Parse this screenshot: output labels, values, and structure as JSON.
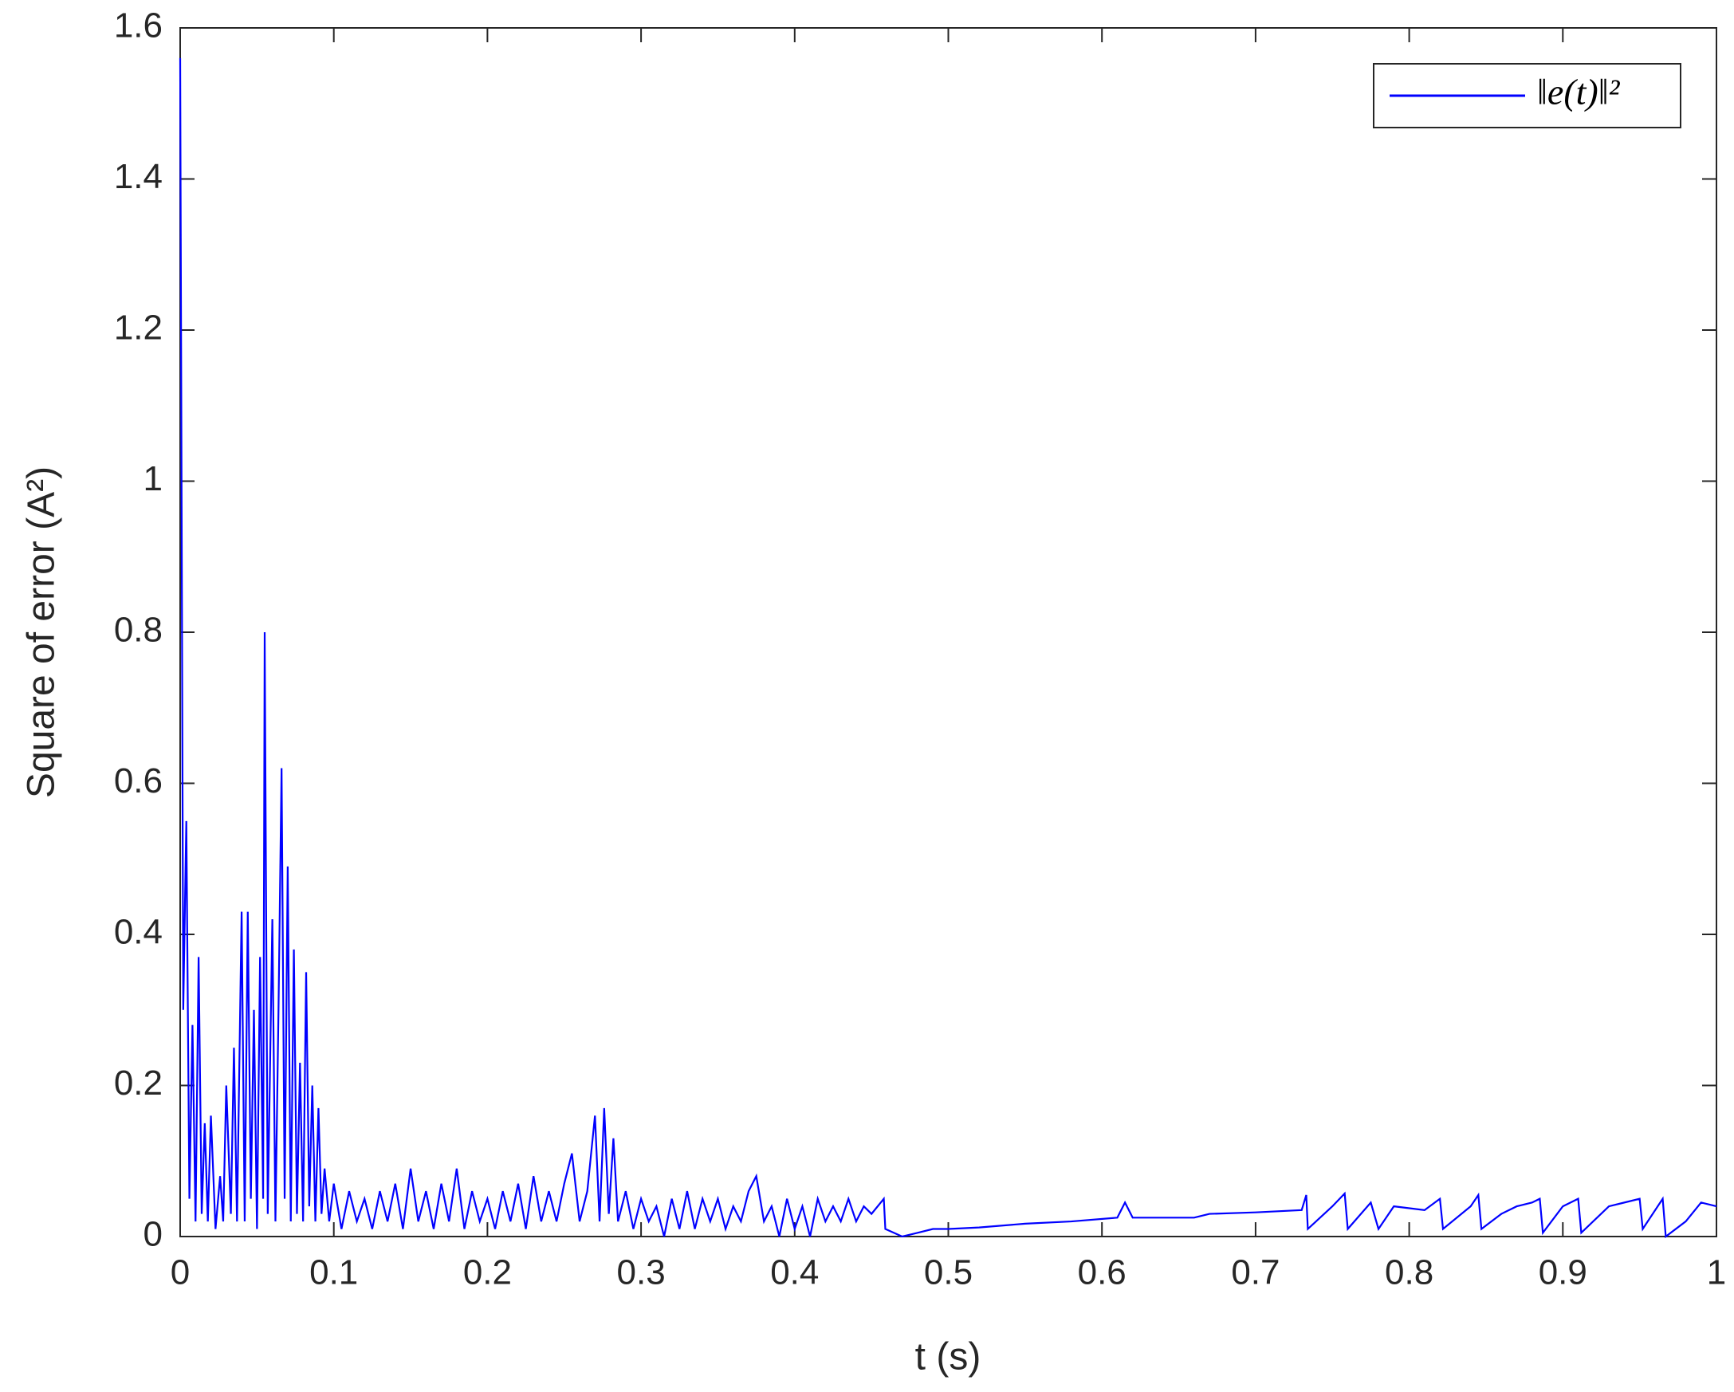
{
  "chart_data": {
    "type": "line",
    "xlabel": "t (s)",
    "ylabel": "Square of error (A²)",
    "xlim": [
      0,
      1
    ],
    "ylim": [
      0,
      1.6
    ],
    "xticks": [
      0,
      0.1,
      0.2,
      0.3,
      0.4,
      0.5,
      0.6,
      0.7,
      0.8,
      0.9,
      1
    ],
    "yticks": [
      0,
      0.2,
      0.4,
      0.6,
      0.8,
      1,
      1.2,
      1.4,
      1.6
    ],
    "legend": "upper right",
    "series": [
      {
        "name": "‖e(t)‖²",
        "color": "#0000ff",
        "x": [
          0,
          0.002,
          0.004,
          0.006,
          0.008,
          0.01,
          0.012,
          0.014,
          0.016,
          0.018,
          0.02,
          0.023,
          0.026,
          0.028,
          0.03,
          0.033,
          0.035,
          0.037,
          0.04,
          0.042,
          0.044,
          0.046,
          0.048,
          0.05,
          0.052,
          0.054,
          0.055,
          0.057,
          0.06,
          0.062,
          0.064,
          0.066,
          0.068,
          0.07,
          0.072,
          0.074,
          0.076,
          0.078,
          0.08,
          0.082,
          0.084,
          0.086,
          0.088,
          0.09,
          0.092,
          0.094,
          0.097,
          0.1,
          0.105,
          0.11,
          0.115,
          0.12,
          0.125,
          0.13,
          0.135,
          0.14,
          0.145,
          0.15,
          0.155,
          0.16,
          0.165,
          0.17,
          0.175,
          0.18,
          0.185,
          0.19,
          0.195,
          0.2,
          0.205,
          0.21,
          0.215,
          0.22,
          0.225,
          0.23,
          0.235,
          0.24,
          0.245,
          0.25,
          0.255,
          0.26,
          0.265,
          0.27,
          0.273,
          0.276,
          0.279,
          0.282,
          0.285,
          0.29,
          0.295,
          0.3,
          0.305,
          0.31,
          0.315,
          0.32,
          0.325,
          0.33,
          0.335,
          0.34,
          0.345,
          0.35,
          0.355,
          0.36,
          0.365,
          0.37,
          0.375,
          0.38,
          0.385,
          0.39,
          0.395,
          0.4,
          0.405,
          0.41,
          0.415,
          0.42,
          0.425,
          0.43,
          0.435,
          0.44,
          0.445,
          0.45,
          0.458,
          0.459,
          0.47,
          0.48,
          0.49,
          0.5,
          0.52,
          0.55,
          0.58,
          0.61,
          0.615,
          0.62,
          0.66,
          0.67,
          0.7,
          0.73,
          0.733,
          0.734,
          0.75,
          0.758,
          0.76,
          0.775,
          0.78,
          0.79,
          0.81,
          0.82,
          0.822,
          0.84,
          0.845,
          0.847,
          0.86,
          0.87,
          0.88,
          0.885,
          0.887,
          0.9,
          0.91,
          0.912,
          0.93,
          0.95,
          0.952,
          0.965,
          0.967,
          0.98,
          0.99,
          1
        ],
        "values": [
          1.56,
          0.3,
          0.55,
          0.05,
          0.28,
          0.02,
          0.37,
          0.03,
          0.15,
          0.02,
          0.16,
          0.01,
          0.08,
          0.02,
          0.2,
          0.03,
          0.25,
          0.02,
          0.43,
          0.02,
          0.43,
          0.05,
          0.3,
          0.01,
          0.37,
          0.05,
          0.8,
          0.03,
          0.42,
          0.02,
          0.3,
          0.62,
          0.05,
          0.49,
          0.02,
          0.38,
          0.03,
          0.23,
          0.02,
          0.35,
          0.04,
          0.2,
          0.02,
          0.17,
          0.03,
          0.09,
          0.02,
          0.07,
          0.01,
          0.06,
          0.02,
          0.05,
          0.01,
          0.06,
          0.02,
          0.07,
          0.01,
          0.09,
          0.02,
          0.06,
          0.01,
          0.07,
          0.02,
          0.09,
          0.01,
          0.06,
          0.02,
          0.05,
          0.01,
          0.06,
          0.02,
          0.07,
          0.01,
          0.08,
          0.02,
          0.06,
          0.02,
          0.07,
          0.11,
          0.02,
          0.06,
          0.16,
          0.02,
          0.17,
          0.03,
          0.13,
          0.02,
          0.06,
          0.01,
          0.05,
          0.02,
          0.04,
          0,
          0.05,
          0.01,
          0.06,
          0.01,
          0.05,
          0.02,
          0.05,
          0.01,
          0.04,
          0.02,
          0.06,
          0.08,
          0.02,
          0.04,
          0,
          0.05,
          0.01,
          0.04,
          0,
          0.05,
          0.02,
          0.04,
          0.02,
          0.05,
          0.02,
          0.04,
          0.03,
          0.05,
          0.01,
          0,
          0.005,
          0.01,
          0.01,
          0.012,
          0.017,
          0.02,
          0.025,
          0.045,
          0.025,
          0.025,
          0.03,
          0.032,
          0.035,
          0.055,
          0.01,
          0.04,
          0.057,
          0.01,
          0.045,
          0.01,
          0.04,
          0.035,
          0.05,
          0.01,
          0.04,
          0.055,
          0.01,
          0.03,
          0.04,
          0.045,
          0.05,
          0.005,
          0.04,
          0.05,
          0.005,
          0.04,
          0.05,
          0.01,
          0.05,
          0,
          0.02,
          0.045,
          0.04
        ]
      }
    ]
  }
}
